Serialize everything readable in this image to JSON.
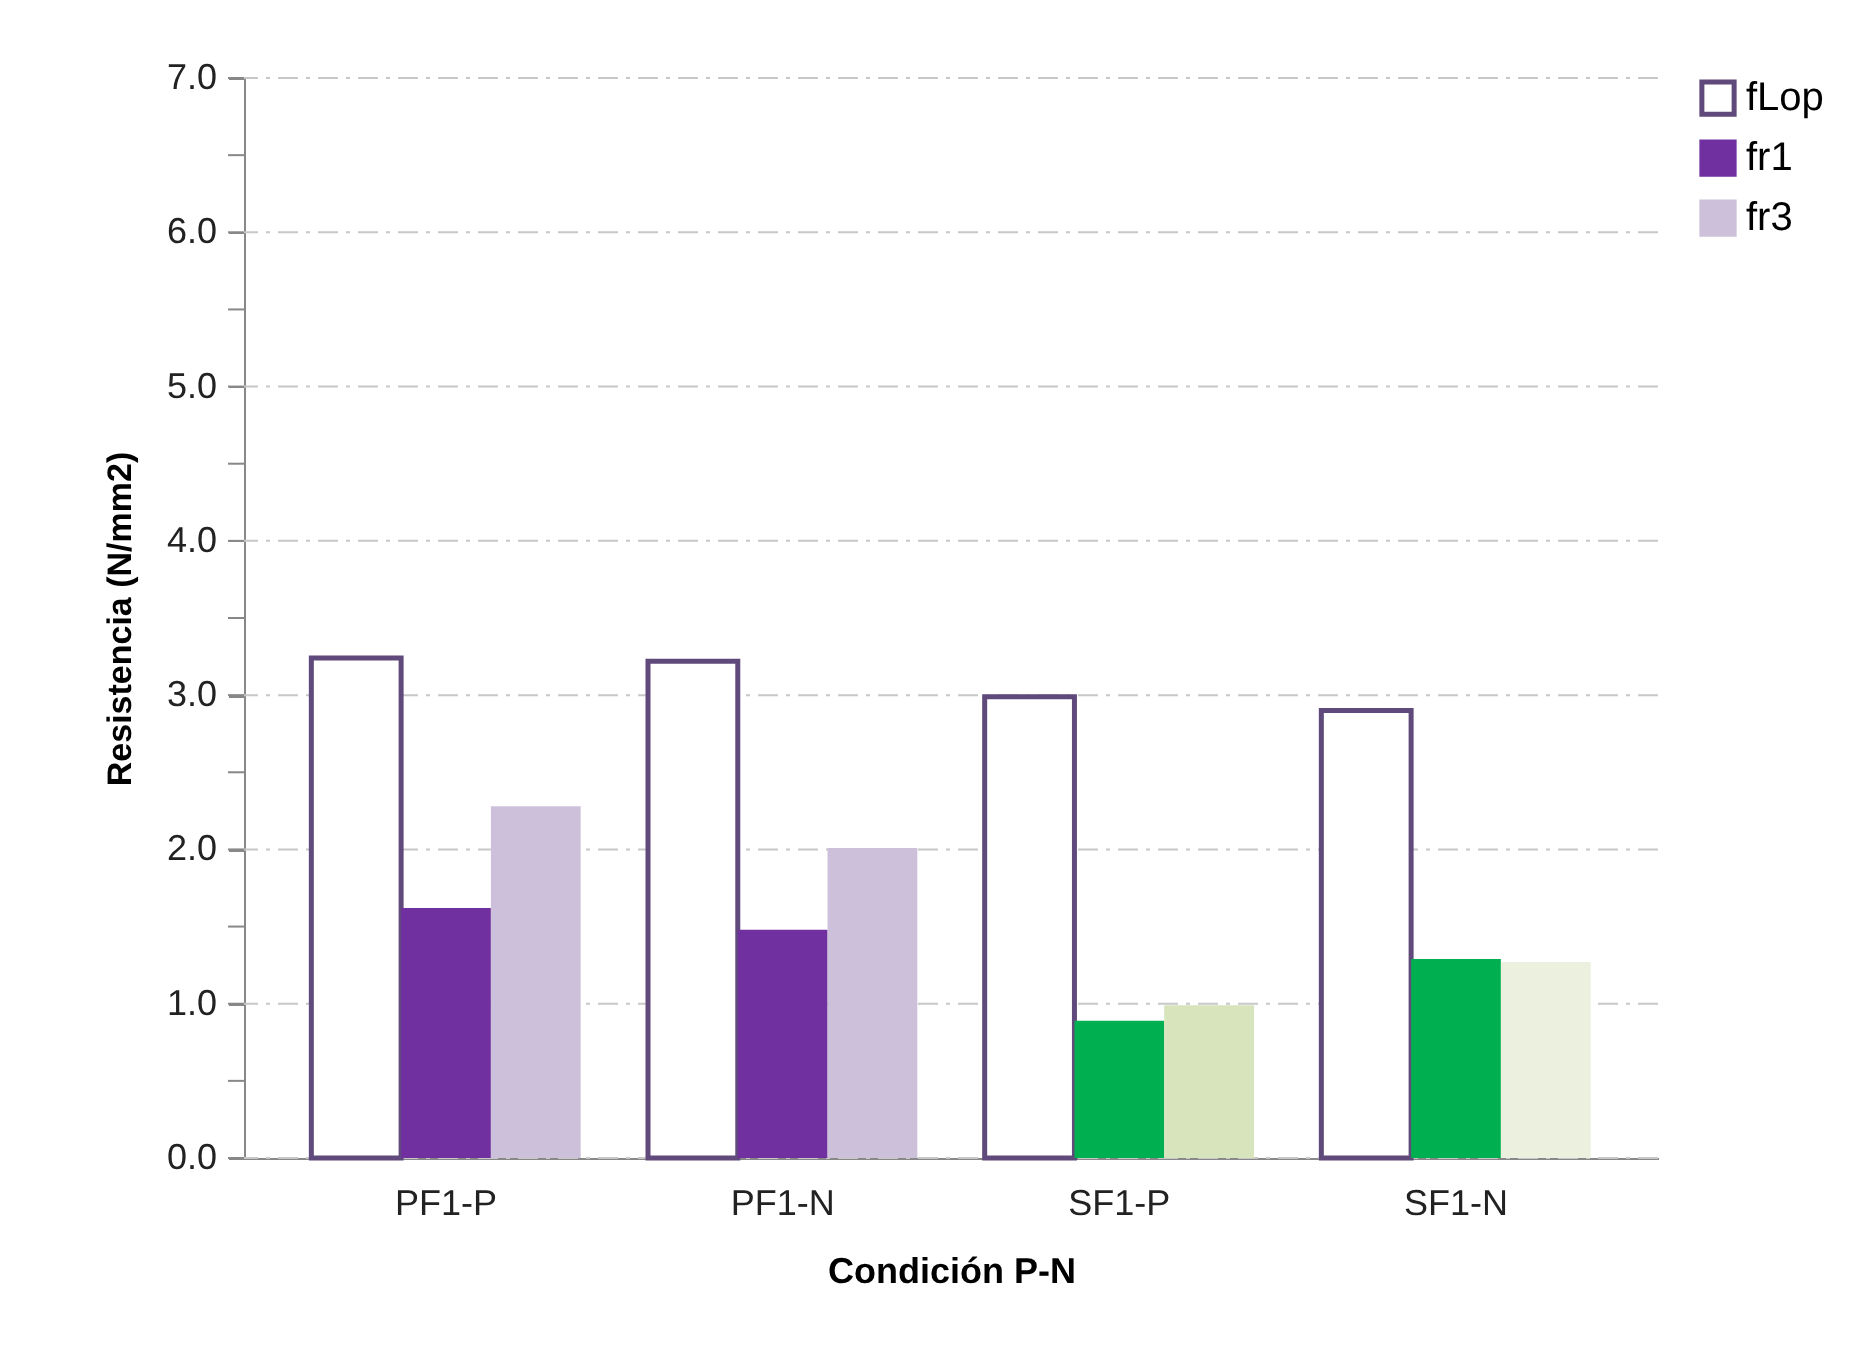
{
  "chart_data": {
    "type": "bar",
    "xlabel": "Condición P-N",
    "ylabel": "Resistencia  (N/mm2)",
    "categories": [
      "PF1-P",
      "PF1-N",
      "SF1-P",
      "SF1-N"
    ],
    "series": [
      {
        "name": "fLop",
        "color": "#604a7b",
        "line_style": "dotted",
        "values": [
          3.24,
          3.22,
          2.99,
          2.9
        ]
      },
      {
        "name": "fr1",
        "color": "#7030a0",
        "colors": [
          "#7030a0",
          "#7030a0",
          "#00b050",
          "#00b050"
        ],
        "values": [
          1.62,
          1.48,
          0.89,
          1.29
        ]
      },
      {
        "name": "fr3",
        "color": "#ccc0da",
        "colors": [
          "#ccc0da",
          "#ccc0da",
          "#d8e4bc",
          "#ebf1de"
        ],
        "values": [
          2.28,
          2.01,
          0.99,
          1.27
        ]
      }
    ],
    "ylim": [
      0,
      7
    ],
    "yticks": [
      {
        "value": 0,
        "label": "0.0"
      },
      {
        "value": 0.5,
        "label": null
      },
      {
        "value": 1,
        "label": "1.0"
      },
      {
        "value": 1.5,
        "label": null
      },
      {
        "value": 2,
        "label": "2.0"
      },
      {
        "value": 2.5,
        "label": null
      },
      {
        "value": 3,
        "label": "3.0"
      },
      {
        "value": 3.5,
        "label": null
      },
      {
        "value": 4,
        "label": "4.0"
      },
      {
        "value": 4.5,
        "label": null
      },
      {
        "value": 5,
        "label": "5.0"
      },
      {
        "value": 5.5,
        "label": null
      },
      {
        "value": 6,
        "label": "6.0"
      },
      {
        "value": 6.5,
        "label": null
      },
      {
        "value": 7,
        "label": "7.0"
      }
    ],
    "grid": "y",
    "legend": "top right"
  }
}
